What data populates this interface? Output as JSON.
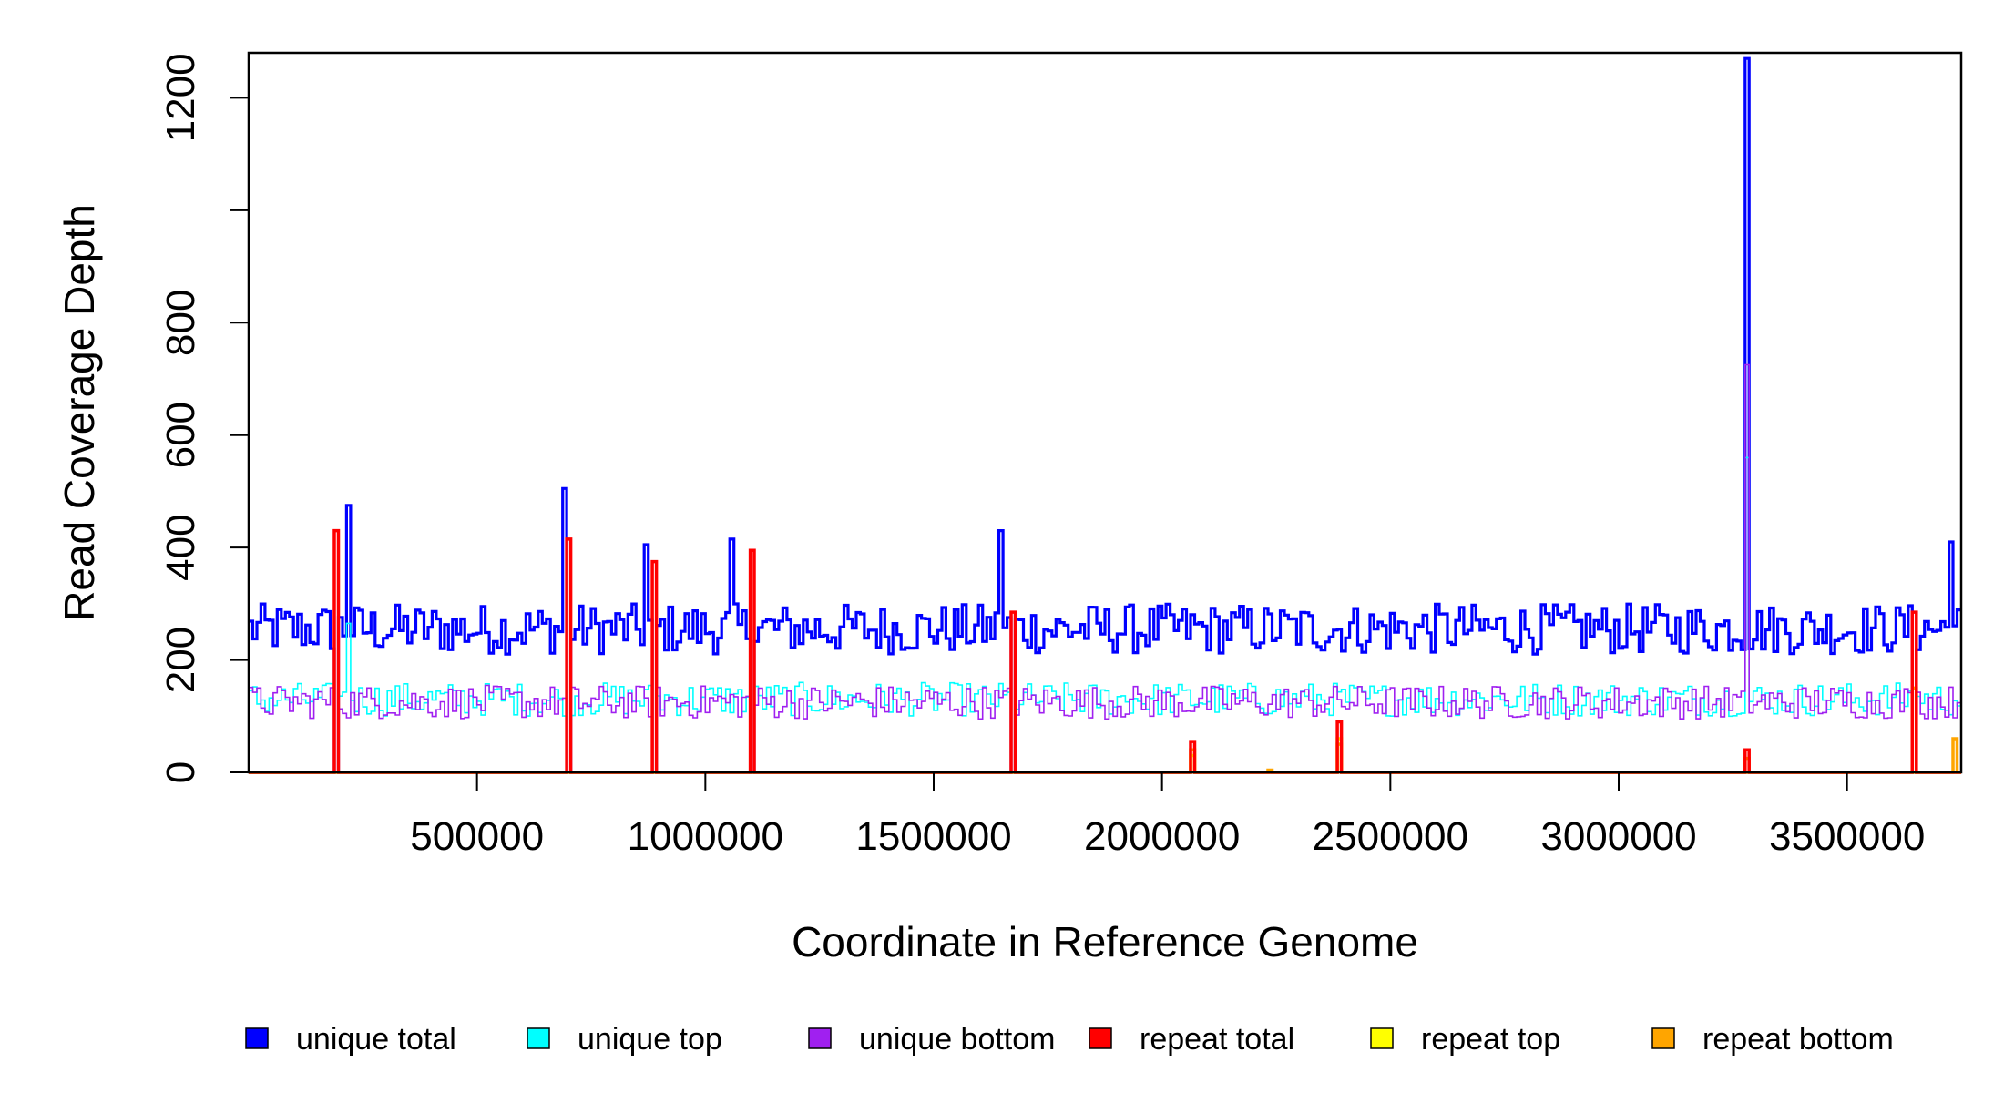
{
  "chart_data": {
    "type": "line",
    "xlabel": "Coordinate in Reference Genome",
    "ylabel": "Read Coverage Depth",
    "xlim": [
      1,
      3750000
    ],
    "ylim": [
      0,
      1280
    ],
    "x_ticks": [
      500000,
      1000000,
      1500000,
      2000000,
      2500000,
      3000000,
      3500000
    ],
    "x_tick_labels": [
      "500000",
      "1000000",
      "1500000",
      "2000000",
      "2500000",
      "3000000",
      "3500000"
    ],
    "y_ticks": [
      0,
      200,
      400,
      600,
      800,
      1000,
      1200
    ],
    "y_tick_labels": [
      "0",
      "200",
      "400",
      "600",
      "800",
      "",
      "1200"
    ],
    "legend_position": "bottom",
    "legend": [
      {
        "label": "unique total",
        "color": "#0000ff"
      },
      {
        "label": "unique top",
        "color": "#00ffff"
      },
      {
        "label": "unique bottom",
        "color": "#a020f0"
      },
      {
        "label": "repeat total",
        "color": "#ff0000"
      },
      {
        "label": "repeat top",
        "color": "#ffff00"
      },
      {
        "label": "repeat bottom",
        "color": "#ffa500"
      }
    ],
    "series": [
      {
        "name": "unique total",
        "color": "#0000ff",
        "baseline": 255,
        "noise": 45,
        "peaks": [
          [
            190000,
            320
          ],
          [
            220000,
            475
          ],
          [
            690000,
            505
          ],
          [
            870000,
            405
          ],
          [
            1060000,
            415
          ],
          [
            1650000,
            430
          ],
          [
            3280000,
            1270
          ],
          [
            3730000,
            410
          ]
        ],
        "dips": [
          [
            195000,
            0
          ],
          [
            700000,
            0
          ],
          [
            890000,
            0
          ],
          [
            1100000,
            0
          ],
          [
            1670000,
            0
          ],
          [
            3650000,
            0
          ]
        ]
      },
      {
        "name": "unique top",
        "color": "#00ffff",
        "baseline": 130,
        "noise": 30,
        "peaks": [
          [
            220000,
            265
          ],
          [
            3280000,
            560
          ]
        ],
        "dips": [
          [
            195000,
            0
          ],
          [
            700000,
            0
          ],
          [
            890000,
            0
          ],
          [
            1100000,
            0
          ],
          [
            1670000,
            0
          ],
          [
            3650000,
            0
          ]
        ]
      },
      {
        "name": "unique bottom",
        "color": "#a020f0",
        "baseline": 125,
        "noise": 30,
        "peaks": [
          [
            3280000,
            725
          ]
        ],
        "dips": [
          [
            195000,
            0
          ],
          [
            700000,
            0
          ],
          [
            890000,
            0
          ],
          [
            1100000,
            0
          ],
          [
            1670000,
            0
          ],
          [
            3650000,
            0
          ]
        ]
      },
      {
        "name": "repeat total",
        "color": "#ff0000",
        "baseline": 0,
        "noise": 0,
        "peaks": [
          [
            195000,
            430
          ],
          [
            700000,
            415
          ],
          [
            890000,
            375
          ],
          [
            1100000,
            395
          ],
          [
            1670000,
            285
          ],
          [
            2070000,
            55
          ],
          [
            2390000,
            90
          ],
          [
            3280000,
            40
          ],
          [
            3650000,
            285
          ]
        ]
      },
      {
        "name": "repeat top",
        "color": "#ffff00",
        "baseline": 0,
        "noise": 0,
        "peaks": [
          [
            2070000,
            30
          ],
          [
            2390000,
            60
          ]
        ]
      },
      {
        "name": "repeat bottom",
        "color": "#ffa500",
        "baseline": 0,
        "noise": 0,
        "peaks": [
          [
            2070000,
            40
          ],
          [
            2240000,
            4
          ],
          [
            2390000,
            50
          ],
          [
            3280000,
            25
          ],
          [
            3650000,
            150
          ],
          [
            3740000,
            60
          ]
        ]
      }
    ]
  }
}
